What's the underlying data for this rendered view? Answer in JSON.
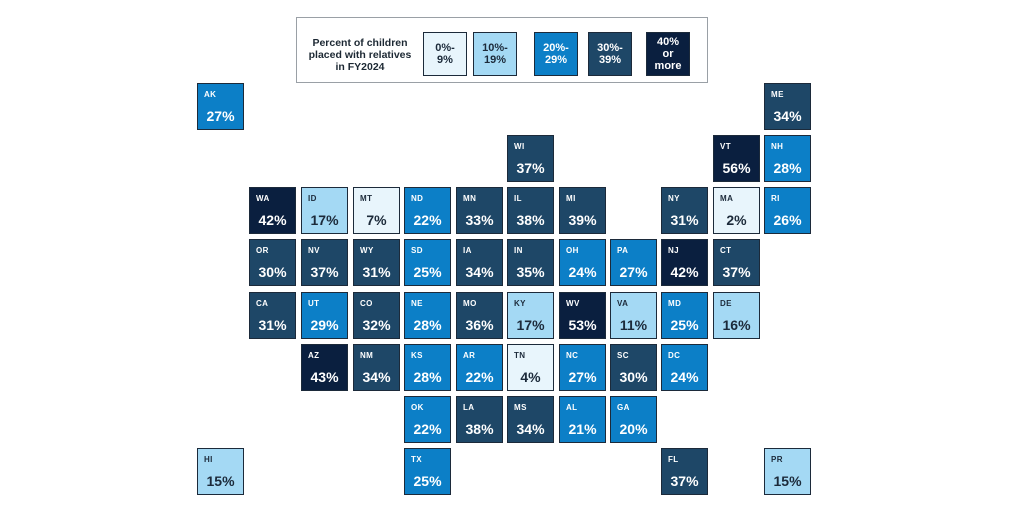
{
  "legend": {
    "title_lines": [
      "Percent of children",
      "placed with relatives",
      "in FY2024"
    ],
    "bins": [
      {
        "lines": [
          "0%-",
          "9%"
        ],
        "color": "#e8f5fc",
        "text_color": "#1c2a3a"
      },
      {
        "lines": [
          "10%-",
          "19%"
        ],
        "color": "#a4d9f4",
        "text_color": "#1c2a3a"
      },
      {
        "lines": [
          "20%-",
          "29%"
        ],
        "color": "#0c7fc7",
        "text_color": "#ffffff"
      },
      {
        "lines": [
          "30%-",
          "39%"
        ],
        "color": "#1e4767",
        "text_color": "#ffffff"
      },
      {
        "lines": [
          "40%",
          "or",
          "more"
        ],
        "color": "#0a1f3f",
        "text_color": "#ffffff"
      }
    ]
  },
  "states": [
    {
      "abbr": "AK",
      "value": 27
    },
    {
      "abbr": "ME",
      "value": 34
    },
    {
      "abbr": "WI",
      "value": 37
    },
    {
      "abbr": "VT",
      "value": 56
    },
    {
      "abbr": "NH",
      "value": 28
    },
    {
      "abbr": "WA",
      "value": 42
    },
    {
      "abbr": "ID",
      "value": 17
    },
    {
      "abbr": "MT",
      "value": 7
    },
    {
      "abbr": "ND",
      "value": 22
    },
    {
      "abbr": "MN",
      "value": 33
    },
    {
      "abbr": "IL",
      "value": 38
    },
    {
      "abbr": "MI",
      "value": 39
    },
    {
      "abbr": "NY",
      "value": 31
    },
    {
      "abbr": "MA",
      "value": 2
    },
    {
      "abbr": "RI",
      "value": 26
    },
    {
      "abbr": "OR",
      "value": 30
    },
    {
      "abbr": "NV",
      "value": 37
    },
    {
      "abbr": "WY",
      "value": 31
    },
    {
      "abbr": "SD",
      "value": 25
    },
    {
      "abbr": "IA",
      "value": 34
    },
    {
      "abbr": "IN",
      "value": 35
    },
    {
      "abbr": "OH",
      "value": 24
    },
    {
      "abbr": "PA",
      "value": 27
    },
    {
      "abbr": "NJ",
      "value": 42
    },
    {
      "abbr": "CT",
      "value": 37
    },
    {
      "abbr": "CA",
      "value": 31
    },
    {
      "abbr": "UT",
      "value": 29
    },
    {
      "abbr": "CO",
      "value": 32
    },
    {
      "abbr": "NE",
      "value": 28
    },
    {
      "abbr": "MO",
      "value": 36
    },
    {
      "abbr": "KY",
      "value": 17
    },
    {
      "abbr": "WV",
      "value": 53
    },
    {
      "abbr": "VA",
      "value": 11
    },
    {
      "abbr": "MD",
      "value": 25
    },
    {
      "abbr": "DE",
      "value": 16
    },
    {
      "abbr": "AZ",
      "value": 43
    },
    {
      "abbr": "NM",
      "value": 34
    },
    {
      "abbr": "KS",
      "value": 28
    },
    {
      "abbr": "AR",
      "value": 22
    },
    {
      "abbr": "TN",
      "value": 4
    },
    {
      "abbr": "NC",
      "value": 27
    },
    {
      "abbr": "SC",
      "value": 30
    },
    {
      "abbr": "DC",
      "value": 24
    },
    {
      "abbr": "OK",
      "value": 22
    },
    {
      "abbr": "LA",
      "value": 38
    },
    {
      "abbr": "MS",
      "value": 34
    },
    {
      "abbr": "AL",
      "value": 21
    },
    {
      "abbr": "GA",
      "value": 20
    },
    {
      "abbr": "HI",
      "value": 15
    },
    {
      "abbr": "TX",
      "value": 25
    },
    {
      "abbr": "FL",
      "value": 37
    },
    {
      "abbr": "PR",
      "value": 15
    }
  ]
}
